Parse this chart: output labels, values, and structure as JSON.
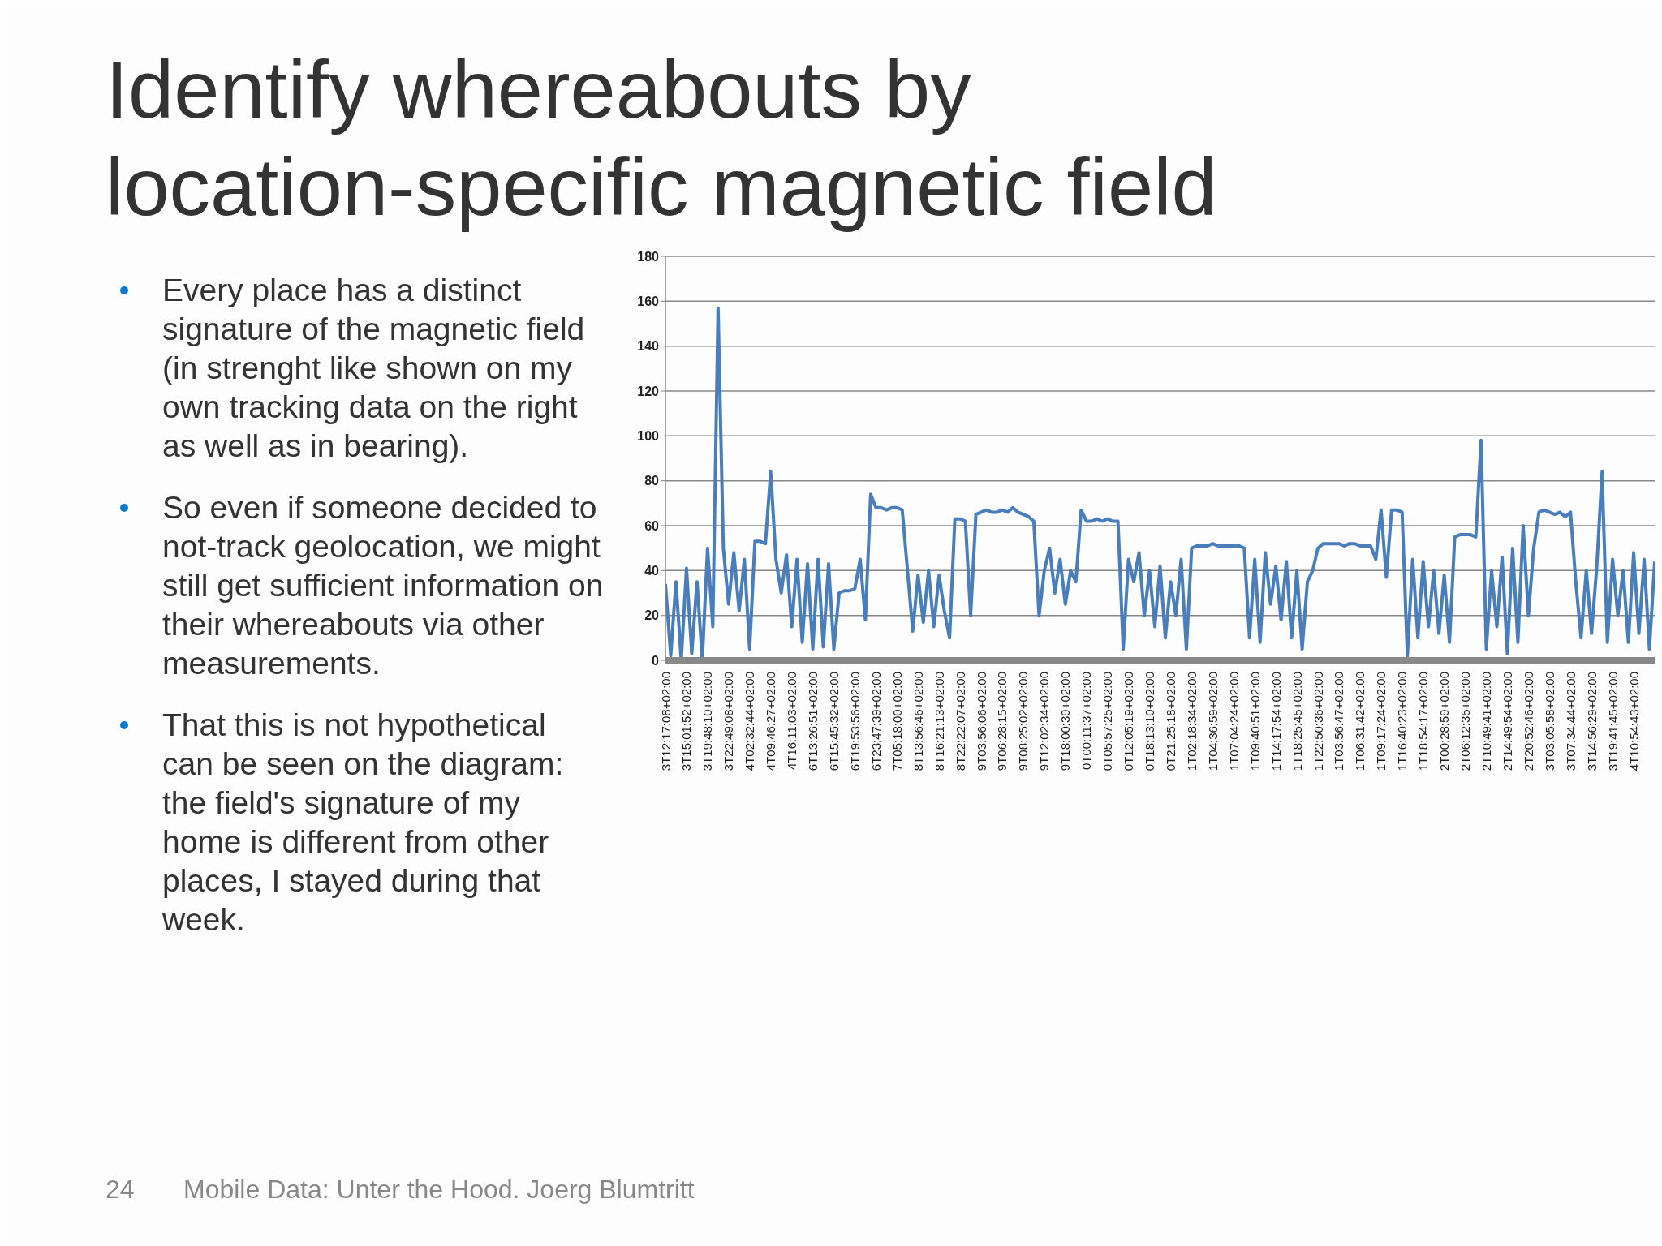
{
  "chart_data": {
    "type": "line",
    "title": "Identify whereabouts by location-specific magnetic field",
    "annotations": [
      "Every place has a distinct signature of the magnetic field (in strenght like shown on my own tracking data on the right as well as in bearing).",
      "So even if someone decided to not-track geolocation, we might still get sufficient information on their whereabouts via other measurements.",
      "That this is not hypothetical can be seen on the diagram: the field's signature of my home is different from other places, I stayed during that week.",
      "24",
      "Mobile Data: Unter the Hood. Joerg Blumtritt"
    ],
    "categories": [
      "3T12:17:08+02:00",
      null,
      null,
      null,
      "3T15:01:52+02:00",
      null,
      null,
      null,
      "3T19:48:10+02:00",
      null,
      null,
      null,
      "3T22:49:08+02:00",
      null,
      null,
      null,
      "4T02:32:44+02:00",
      null,
      null,
      null,
      "4T09:46:27+02:00",
      null,
      null,
      null,
      "4T16:11:03+02:00",
      null,
      null,
      null,
      "6T13:26:51+02:00",
      null,
      null,
      null,
      "6T15:45:32+02:00",
      null,
      null,
      null,
      "6T19:53:56+02:00",
      null,
      null,
      null,
      "6T23:47:39+02:00",
      null,
      null,
      null,
      "7T05:18:00+02:00",
      null,
      null,
      null,
      "8T13:56:46+02:00",
      null,
      null,
      null,
      "8T16:21:13+02:00",
      null,
      null,
      null,
      "8T22:22:07+02:00",
      null,
      null,
      null,
      "9T03:56:06+02:00",
      null,
      null,
      null,
      "9T06:28:15+02:00",
      null,
      null,
      null,
      "9T08:25:02+02:00",
      null,
      null,
      null,
      "9T12:02:34+02:00",
      null,
      null,
      null,
      "9T18:00:39+02:00",
      null,
      null,
      null,
      "0T00:11:37+02:00",
      null,
      null,
      null,
      "0T05:57:25+02:00",
      null,
      null,
      null,
      "0T12:05:19+02:00",
      null,
      null,
      null,
      "0T18:13:10+02:00",
      null,
      null,
      null,
      "0T21:25:18+02:00",
      null,
      null,
      null,
      "1T02:18:34+02:00",
      null,
      null,
      null,
      "1T04:36:59+02:00",
      null,
      null,
      null,
      "1T07:04:24+02:00",
      null,
      null,
      null,
      "1T09:40:51+02:00",
      null,
      null,
      null,
      "1T14:17:54+02:00",
      null,
      null,
      null,
      "1T18:25:45+02:00",
      null,
      null,
      null,
      "1T22:50:36+02:00",
      null,
      null,
      null,
      "1T03:56:47+02:00",
      null,
      null,
      null,
      "1T06:31:42+02:00",
      null,
      null,
      null,
      "1T09:17:24+02:00",
      null,
      null,
      null,
      "1T16:40:23+02:00",
      null,
      null,
      null,
      "1T18:54:17+02:00",
      null,
      null,
      null,
      "2T00:28:59+02:00",
      null,
      null,
      null,
      "2T06:12:35+02:00",
      null,
      null,
      null,
      "2T10:49:41+02:00",
      null,
      null,
      null,
      "2T14:49:54+02:00",
      null,
      null,
      null,
      "2T20:52:46+02:00",
      null,
      null,
      null,
      "3T03:05:58+02:00",
      null,
      null,
      null,
      "3T07:34:44+02:00",
      null,
      null,
      null,
      "3T14:56:29+02:00",
      null,
      null,
      null,
      "3T19:41:45+02:00",
      null,
      null,
      null,
      "4T10:54:43+02:00",
      null,
      null,
      null,
      null
    ],
    "series": [
      {
        "color": "#4a7ebb",
        "values": [
          34,
          2,
          35,
          0,
          41,
          3,
          35,
          0,
          50,
          15,
          157,
          50,
          25,
          48,
          22,
          45,
          5,
          53,
          53,
          52,
          84,
          45,
          30,
          47,
          15,
          45,
          8,
          43,
          5,
          45,
          6,
          43,
          5,
          30,
          31,
          31,
          32,
          45,
          18,
          74,
          68,
          68,
          67,
          68,
          68,
          67,
          40,
          13,
          38,
          17,
          40,
          15,
          38,
          22,
          10,
          63,
          63,
          62,
          20,
          65,
          66,
          67,
          66,
          66,
          67,
          66,
          68,
          66,
          65,
          64,
          62,
          20,
          40,
          50,
          30,
          45,
          25,
          40,
          35,
          67,
          62,
          62,
          63,
          62,
          63,
          62,
          62,
          5,
          45,
          35,
          48,
          20,
          40,
          15,
          42,
          10,
          35,
          20,
          45,
          5,
          50,
          51,
          51,
          51,
          52,
          51,
          51,
          51,
          51,
          51,
          50,
          10,
          45,
          8,
          48,
          25,
          42,
          18,
          44,
          10,
          40,
          5,
          35,
          40,
          50,
          52,
          52,
          52,
          52,
          51,
          52,
          52,
          51,
          51,
          51,
          45,
          67,
          37,
          67,
          67,
          66,
          2,
          45,
          10,
          44,
          15,
          40,
          12,
          38,
          8,
          55,
          56,
          56,
          56,
          55,
          98,
          5,
          40,
          15,
          46,
          3,
          50,
          8,
          60,
          20,
          50,
          66,
          67,
          66,
          65,
          66,
          64,
          66,
          35,
          10,
          40,
          12,
          42,
          84,
          8,
          45,
          20,
          40,
          8,
          48,
          12,
          45,
          5,
          44
        ]
      }
    ],
    "ylim": [
      0,
      180
    ],
    "yticks": [
      0,
      20,
      40,
      60,
      80,
      100,
      120,
      140,
      160,
      180
    ],
    "grid": "y",
    "marker": "none"
  }
}
